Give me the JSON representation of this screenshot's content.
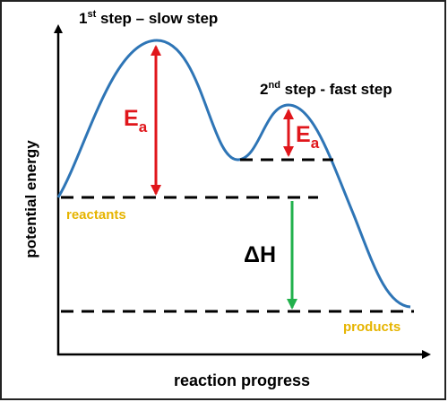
{
  "step1": {
    "number": "1",
    "ordinal": "st",
    "text": " step – slow step"
  },
  "step2": {
    "number": "2",
    "ordinal": "nd",
    "text": " step - fast step"
  },
  "activation_1": {
    "symbol": "E",
    "subscript": "a"
  },
  "activation_2": {
    "symbol": "E",
    "subscript": "a"
  },
  "reactants": "reactants",
  "products": "products",
  "enthalpy": "ΔH",
  "y_axis_label": "potential energy",
  "x_axis_label": "reaction progress"
}
